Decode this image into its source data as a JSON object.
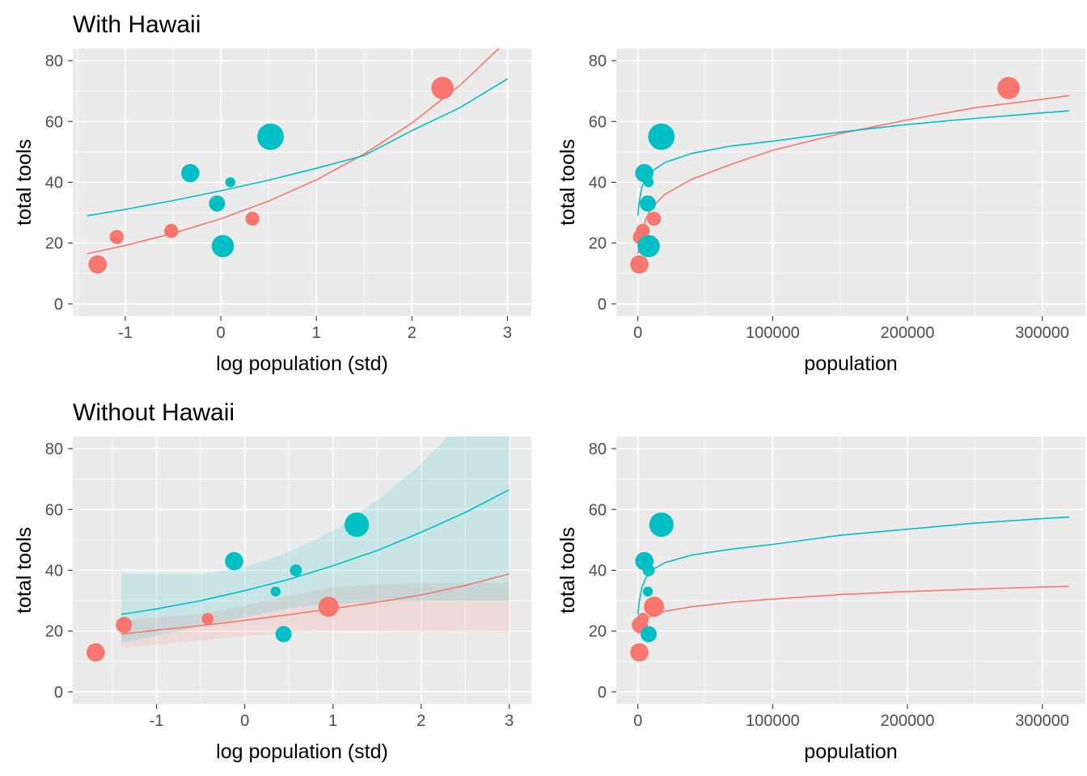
{
  "colors": {
    "red": "#F8766D",
    "teal": "#00BFC4",
    "panel_bg": "#EBEBEB",
    "grid": "#FFFFFF",
    "tick_text": "#4D4D4D"
  },
  "chart_data": [
    {
      "type": "scatter",
      "title": "With Hawaii",
      "xlabel": "log population (std)",
      "ylabel": "total tools",
      "xlim": [
        -1.55,
        3.25
      ],
      "ylim": [
        -4,
        84
      ],
      "xticks": [
        -1,
        0,
        1,
        2,
        3
      ],
      "xtick_labels": [
        "-1",
        "0",
        "1",
        "2",
        "3"
      ],
      "yticks": [
        0,
        20,
        40,
        60,
        80
      ],
      "ytick_labels": [
        "0",
        "20",
        "40",
        "60",
        "80"
      ],
      "grid": true,
      "points": [
        {
          "x": -1.29,
          "y": 13,
          "size": 3,
          "color": "red"
        },
        {
          "x": -1.09,
          "y": 22,
          "size": 2,
          "color": "red"
        },
        {
          "x": -0.52,
          "y": 24,
          "size": 2,
          "color": "red"
        },
        {
          "x": 0.33,
          "y": 28,
          "size": 2,
          "color": "red"
        },
        {
          "x": 2.32,
          "y": 71,
          "size": 4,
          "color": "red"
        },
        {
          "x": -0.32,
          "y": 43,
          "size": 3,
          "color": "teal"
        },
        {
          "x": -0.04,
          "y": 33,
          "size": 2.5,
          "color": "teal"
        },
        {
          "x": 0.1,
          "y": 40,
          "size": 1,
          "color": "teal"
        },
        {
          "x": 0.02,
          "y": 19,
          "size": 4,
          "color": "teal"
        },
        {
          "x": 0.52,
          "y": 55,
          "size": 5,
          "color": "teal"
        }
      ],
      "series": [
        {
          "color": "red",
          "x": [
            -1.4,
            -1.0,
            -0.5,
            0.0,
            0.5,
            1.0,
            1.5,
            2.0,
            2.5,
            3.0
          ],
          "y": [
            16.5,
            19.2,
            23.2,
            28.0,
            33.8,
            40.8,
            49.3,
            59.5,
            71.8,
            86.7
          ]
        },
        {
          "color": "teal",
          "x": [
            -1.4,
            -1.0,
            -0.5,
            0.0,
            0.5,
            1.0,
            1.5,
            2.0,
            2.5,
            3.0
          ],
          "y": [
            29.0,
            31.1,
            34.0,
            37.2,
            40.7,
            44.6,
            48.8,
            57.0,
            64.5,
            74.0
          ]
        }
      ]
    },
    {
      "type": "scatter",
      "xlabel": "population",
      "ylabel": "total tools",
      "xlim": [
        -16000,
        332000
      ],
      "ylim": [
        -4,
        84
      ],
      "xticks": [
        0,
        100000,
        200000,
        300000
      ],
      "xtick_labels": [
        "0",
        "100000",
        "200000",
        "300000"
      ],
      "yticks": [
        0,
        20,
        40,
        60,
        80
      ],
      "ytick_labels": [
        "0",
        "20",
        "40",
        "60",
        "80"
      ],
      "grid": true,
      "points": [
        {
          "x": 1100,
          "y": 13,
          "size": 3,
          "color": "red"
        },
        {
          "x": 1500,
          "y": 22,
          "size": 2,
          "color": "red"
        },
        {
          "x": 3600,
          "y": 24,
          "size": 2,
          "color": "red"
        },
        {
          "x": 12000,
          "y": 28,
          "size": 2,
          "color": "red"
        },
        {
          "x": 275000,
          "y": 71,
          "size": 4,
          "color": "red"
        },
        {
          "x": 4800,
          "y": 43,
          "size": 3,
          "color": "teal"
        },
        {
          "x": 7400,
          "y": 33,
          "size": 2.5,
          "color": "teal"
        },
        {
          "x": 8000,
          "y": 40,
          "size": 1,
          "color": "teal"
        },
        {
          "x": 8000,
          "y": 19,
          "size": 4,
          "color": "teal"
        },
        {
          "x": 17500,
          "y": 55,
          "size": 5,
          "color": "teal"
        }
      ],
      "series": [
        {
          "color": "red",
          "x": [
            0,
            1000,
            3000,
            6000,
            10000,
            20000,
            40000,
            70000,
            100000,
            150000,
            200000,
            250000,
            300000,
            320000
          ],
          "y": [
            16.5,
            18.5,
            23.5,
            28.0,
            31.5,
            36.0,
            41.0,
            46.0,
            50.5,
            56.0,
            60.5,
            64.5,
            67.3,
            68.5
          ]
        },
        {
          "color": "teal",
          "x": [
            0,
            1000,
            3000,
            6000,
            10000,
            20000,
            40000,
            70000,
            100000,
            150000,
            200000,
            250000,
            300000,
            320000
          ],
          "y": [
            29.0,
            33.5,
            38.5,
            41.5,
            43.5,
            46.5,
            49.5,
            52.0,
            53.5,
            56.5,
            59.0,
            61.0,
            62.8,
            63.5
          ]
        }
      ]
    },
    {
      "type": "scatter",
      "title": "Without Hawaii",
      "xlabel": "log population (std)",
      "ylabel": "total tools",
      "xlim": [
        -1.95,
        3.25
      ],
      "ylim": [
        -4,
        84
      ],
      "xticks": [
        -1,
        0,
        1,
        2,
        3
      ],
      "xtick_labels": [
        "-1",
        "0",
        "1",
        "2",
        "3"
      ],
      "yticks": [
        0,
        20,
        40,
        60,
        80
      ],
      "ytick_labels": [
        "0",
        "20",
        "40",
        "60",
        "80"
      ],
      "grid": true,
      "points": [
        {
          "x": -1.69,
          "y": 13,
          "size": 3,
          "color": "red"
        },
        {
          "x": -1.37,
          "y": 22,
          "size": 2.5,
          "color": "red"
        },
        {
          "x": -0.42,
          "y": 24,
          "size": 1.5,
          "color": "red"
        },
        {
          "x": 0.95,
          "y": 28,
          "size": 3.5,
          "color": "red"
        },
        {
          "x": -0.12,
          "y": 43,
          "size": 3,
          "color": "teal"
        },
        {
          "x": 0.35,
          "y": 33,
          "size": 1,
          "color": "teal"
        },
        {
          "x": 0.58,
          "y": 40,
          "size": 1.5,
          "color": "teal"
        },
        {
          "x": 0.44,
          "y": 19,
          "size": 2.5,
          "color": "teal"
        },
        {
          "x": 1.27,
          "y": 55,
          "size": 4.5,
          "color": "teal"
        }
      ],
      "series": [
        {
          "color": "red",
          "x": [
            -1.4,
            -1.0,
            -0.5,
            0.0,
            0.5,
            1.0,
            1.5,
            2.0,
            2.5,
            3.0
          ],
          "y": [
            19.0,
            20.3,
            21.8,
            23.5,
            25.4,
            27.4,
            29.5,
            31.9,
            35.0,
            38.8
          ]
        },
        {
          "color": "teal",
          "x": [
            -1.4,
            -1.0,
            -0.5,
            0.0,
            0.5,
            1.0,
            1.5,
            2.0,
            2.5,
            3.0
          ],
          "y": [
            25.5,
            27.3,
            30.0,
            33.3,
            37.0,
            41.5,
            46.5,
            52.5,
            59.0,
            66.5
          ]
        }
      ],
      "bands": [
        {
          "color": "red",
          "x": [
            -1.4,
            -1.0,
            -0.5,
            0.0,
            0.5,
            1.0,
            1.5,
            2.0,
            2.5,
            3.0
          ],
          "lower": [
            14.5,
            15.5,
            17.0,
            18.3,
            19.5,
            20.0,
            20.0,
            19.8,
            19.7,
            19.6
          ],
          "upper": [
            23.5,
            24.5,
            25.5,
            28.5,
            31.5,
            34.5,
            35.3,
            35.7,
            35.8,
            36.0
          ]
        },
        {
          "color": "teal",
          "x": [
            -1.4,
            -1.0,
            -0.5,
            0.0,
            0.5,
            1.0,
            1.5,
            2.0,
            2.5,
            3.0
          ],
          "lower": [
            16.0,
            18.5,
            21.5,
            24.5,
            27.5,
            29.0,
            29.5,
            30.0,
            30.0,
            30.0
          ],
          "upper": [
            39.0,
            38.8,
            38.7,
            41.0,
            46.0,
            53.0,
            63.0,
            75.0,
            90.0,
            110.0
          ]
        }
      ]
    },
    {
      "type": "scatter",
      "xlabel": "population",
      "ylabel": "total tools",
      "xlim": [
        -16000,
        332000
      ],
      "ylim": [
        -4,
        84
      ],
      "xticks": [
        0,
        100000,
        200000,
        300000
      ],
      "xtick_labels": [
        "0",
        "100000",
        "200000",
        "300000"
      ],
      "yticks": [
        0,
        20,
        40,
        60,
        80
      ],
      "ytick_labels": [
        "0",
        "20",
        "40",
        "60",
        "80"
      ],
      "grid": true,
      "points": [
        {
          "x": 1100,
          "y": 13,
          "size": 3,
          "color": "red"
        },
        {
          "x": 1500,
          "y": 22,
          "size": 2.5,
          "color": "red"
        },
        {
          "x": 3600,
          "y": 24,
          "size": 1.5,
          "color": "red"
        },
        {
          "x": 12000,
          "y": 28,
          "size": 3.5,
          "color": "red"
        },
        {
          "x": 4800,
          "y": 43,
          "size": 3,
          "color": "teal"
        },
        {
          "x": 7400,
          "y": 33,
          "size": 1,
          "color": "teal"
        },
        {
          "x": 8000,
          "y": 40,
          "size": 1.5,
          "color": "teal"
        },
        {
          "x": 8000,
          "y": 19,
          "size": 2.5,
          "color": "teal"
        },
        {
          "x": 17500,
          "y": 55,
          "size": 4.5,
          "color": "teal"
        }
      ],
      "series": [
        {
          "color": "red",
          "x": [
            0,
            1000,
            3000,
            6000,
            10000,
            20000,
            40000,
            70000,
            100000,
            150000,
            200000,
            250000,
            300000,
            320000
          ],
          "y": [
            19.0,
            20.5,
            22.5,
            24.0,
            25.0,
            26.5,
            28.0,
            29.5,
            30.5,
            32.0,
            33.0,
            33.8,
            34.5,
            34.7
          ]
        },
        {
          "color": "teal",
          "x": [
            0,
            1000,
            3000,
            6000,
            10000,
            20000,
            40000,
            70000,
            100000,
            150000,
            200000,
            250000,
            300000,
            320000
          ],
          "y": [
            25.5,
            29.5,
            34.5,
            37.5,
            40.0,
            42.5,
            45.0,
            47.0,
            48.5,
            51.5,
            53.5,
            55.5,
            57.0,
            57.5
          ]
        }
      ]
    }
  ]
}
